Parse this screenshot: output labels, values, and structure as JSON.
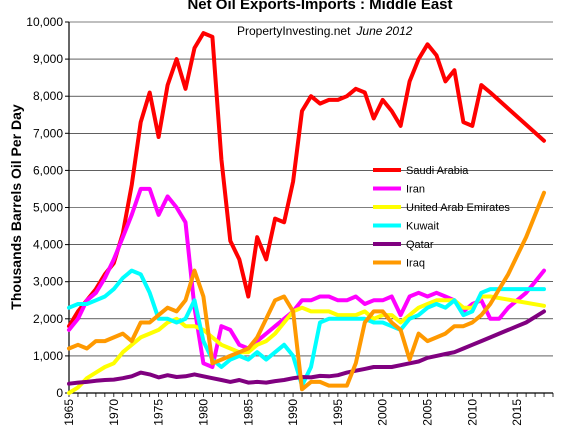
{
  "chart_data": {
    "type": "line",
    "title": "Net Oil Exports-Imports : Middle East",
    "subtitle_source": "PropertyInvesting.net",
    "subtitle_date": "June 2012",
    "xlabel": "",
    "ylabel": "Thousands Barrels Oil Per Day",
    "xlim": [
      1965,
      2019
    ],
    "ylim": [
      0,
      10000
    ],
    "x_ticks": [
      "1965",
      "1970",
      "1975",
      "1980",
      "1985",
      "1990",
      "1995",
      "2000",
      "2005",
      "2010",
      "2015"
    ],
    "y_ticks": [
      "0",
      "1,000",
      "2,000",
      "3,000",
      "4,000",
      "5,000",
      "6,000",
      "7,000",
      "8,000",
      "9,000",
      "10,000"
    ],
    "legend_position": "right-center",
    "series": [
      {
        "name": "Saudi Arabia",
        "color": "#ff0000",
        "x": [
          1965,
          1966,
          1967,
          1968,
          1969,
          1970,
          1971,
          1972,
          1973,
          1974,
          1975,
          1976,
          1977,
          1978,
          1979,
          1980,
          1981,
          1982,
          1983,
          1984,
          1985,
          1986,
          1987,
          1988,
          1989,
          1990,
          1991,
          1992,
          1993,
          1994,
          1995,
          1996,
          1997,
          1998,
          1999,
          2000,
          2001,
          2002,
          2003,
          2004,
          2005,
          2006,
          2007,
          2008,
          2009,
          2010,
          2011,
          2012,
          2018
        ],
        "y": [
          1800,
          2200,
          2500,
          2800,
          3200,
          3500,
          4300,
          5600,
          7300,
          8100,
          6900,
          8300,
          9000,
          8200,
          9300,
          9700,
          9600,
          6300,
          4100,
          3600,
          2600,
          4200,
          3600,
          4700,
          4600,
          5700,
          7600,
          8000,
          7800,
          7900,
          7900,
          8000,
          8200,
          8100,
          7400,
          7900,
          7600,
          7200,
          8400,
          9000,
          9400,
          9100,
          8400,
          8700,
          7300,
          7200,
          8300,
          8100,
          6800
        ]
      },
      {
        "name": "Iran",
        "color": "#ff00ff",
        "x": [
          1965,
          1966,
          1967,
          1968,
          1969,
          1970,
          1971,
          1972,
          1973,
          1974,
          1975,
          1976,
          1977,
          1978,
          1979,
          1980,
          1981,
          1982,
          1983,
          1984,
          1985,
          1986,
          1987,
          1988,
          1989,
          1990,
          1991,
          1992,
          1993,
          1994,
          1995,
          1996,
          1997,
          1998,
          1999,
          2000,
          2001,
          2002,
          2003,
          2004,
          2005,
          2006,
          2007,
          2008,
          2009,
          2010,
          2011,
          2012,
          2013,
          2014,
          2015,
          2016,
          2017,
          2018
        ],
        "y": [
          1700,
          2000,
          2500,
          2700,
          3100,
          3600,
          4200,
          4800,
          5500,
          5500,
          4800,
          5300,
          5000,
          4600,
          2300,
          800,
          700,
          1800,
          1700,
          1300,
          1200,
          1400,
          1600,
          1800,
          2000,
          2200,
          2500,
          2500,
          2600,
          2600,
          2500,
          2500,
          2600,
          2400,
          2500,
          2500,
          2600,
          2100,
          2600,
          2700,
          2600,
          2700,
          2600,
          2500,
          2200,
          2400,
          2500,
          2000,
          2000,
          2300,
          2500,
          2700,
          3000,
          3300
        ]
      },
      {
        "name": "United Arab Emirates",
        "color": "#ffff00",
        "x": [
          1965,
          1966,
          1967,
          1968,
          1969,
          1970,
          1971,
          1972,
          1973,
          1974,
          1975,
          1976,
          1977,
          1978,
          1979,
          1980,
          1981,
          1982,
          1983,
          1984,
          1985,
          1986,
          1987,
          1988,
          1989,
          1990,
          1991,
          1992,
          1993,
          1994,
          1995,
          1996,
          1997,
          1998,
          1999,
          2000,
          2001,
          2002,
          2003,
          2004,
          2005,
          2006,
          2007,
          2008,
          2009,
          2010,
          2011,
          2012,
          2018
        ],
        "y": [
          0,
          150,
          400,
          550,
          700,
          800,
          1100,
          1300,
          1500,
          1600,
          1700,
          1900,
          2000,
          1800,
          1800,
          1700,
          1500,
          1300,
          1200,
          1100,
          1100,
          1300,
          1400,
          1600,
          1900,
          2200,
          2300,
          2200,
          2200,
          2200,
          2100,
          2100,
          2100,
          2200,
          2000,
          2100,
          2100,
          1900,
          2100,
          2300,
          2400,
          2500,
          2500,
          2500,
          2300,
          2300,
          2600,
          2600,
          2350
        ]
      },
      {
        "name": "Kuwait",
        "color": "#00ffff",
        "x": [
          1965,
          1966,
          1967,
          1968,
          1969,
          1970,
          1971,
          1972,
          1973,
          1974,
          1975,
          1976,
          1977,
          1978,
          1979,
          1980,
          1981,
          1982,
          1983,
          1984,
          1985,
          1986,
          1987,
          1988,
          1989,
          1990,
          1991,
          1992,
          1993,
          1994,
          1995,
          1996,
          1997,
          1998,
          1999,
          2000,
          2001,
          2002,
          2003,
          2004,
          2005,
          2006,
          2007,
          2008,
          2009,
          2010,
          2011,
          2012,
          2018
        ],
        "y": [
          2300,
          2400,
          2400,
          2500,
          2600,
          2800,
          3100,
          3300,
          3200,
          2700,
          2000,
          2000,
          1900,
          2000,
          2500,
          1400,
          900,
          700,
          900,
          1000,
          900,
          1100,
          900,
          1100,
          1300,
          1000,
          200,
          700,
          1900,
          2000,
          2000,
          2000,
          2000,
          2000,
          1900,
          1900,
          1800,
          1700,
          2000,
          2100,
          2300,
          2400,
          2300,
          2500,
          2100,
          2200,
          2700,
          2800,
          2800
        ]
      },
      {
        "name": "Qatar",
        "color": "#800080",
        "x": [
          1965,
          1966,
          1967,
          1968,
          1969,
          1970,
          1971,
          1972,
          1973,
          1974,
          1975,
          1976,
          1977,
          1978,
          1979,
          1980,
          1981,
          1982,
          1983,
          1984,
          1985,
          1986,
          1987,
          1988,
          1989,
          1990,
          1991,
          1992,
          1993,
          1994,
          1995,
          1996,
          1997,
          1998,
          1999,
          2000,
          2001,
          2002,
          2003,
          2004,
          2005,
          2006,
          2007,
          2008,
          2009,
          2010,
          2011,
          2012,
          2013,
          2014,
          2015,
          2016,
          2017,
          2018
        ],
        "y": [
          250,
          280,
          300,
          330,
          350,
          360,
          400,
          450,
          550,
          500,
          420,
          480,
          430,
          450,
          500,
          450,
          400,
          350,
          300,
          350,
          280,
          300,
          280,
          320,
          350,
          400,
          430,
          420,
          460,
          450,
          480,
          550,
          600,
          650,
          700,
          700,
          700,
          750,
          800,
          850,
          950,
          1000,
          1050,
          1100,
          1200,
          1300,
          1400,
          1500,
          1600,
          1700,
          1800,
          1900,
          2050,
          2200
        ]
      },
      {
        "name": "Iraq",
        "color": "#ff9900",
        "x": [
          1965,
          1966,
          1967,
          1968,
          1969,
          1970,
          1971,
          1972,
          1973,
          1974,
          1975,
          1976,
          1977,
          1978,
          1979,
          1980,
          1981,
          1982,
          1983,
          1984,
          1985,
          1986,
          1987,
          1988,
          1989,
          1990,
          1991,
          1992,
          1993,
          1994,
          1995,
          1996,
          1997,
          1998,
          1999,
          2000,
          2001,
          2002,
          2003,
          2004,
          2005,
          2006,
          2007,
          2008,
          2009,
          2010,
          2011,
          2012,
          2013,
          2014,
          2015,
          2016,
          2017,
          2018
        ],
        "y": [
          1200,
          1300,
          1200,
          1400,
          1400,
          1500,
          1600,
          1400,
          1900,
          1900,
          2100,
          2300,
          2200,
          2500,
          3300,
          2600,
          800,
          900,
          1000,
          1100,
          1200,
          1500,
          2000,
          2500,
          2600,
          2200,
          100,
          300,
          300,
          200,
          200,
          200,
          800,
          1900,
          2200,
          2200,
          1900,
          1700,
          900,
          1600,
          1400,
          1500,
          1600,
          1800,
          1800,
          1900,
          2100,
          2400,
          2800,
          3200,
          3700,
          4200,
          4800,
          5400
        ]
      }
    ]
  }
}
